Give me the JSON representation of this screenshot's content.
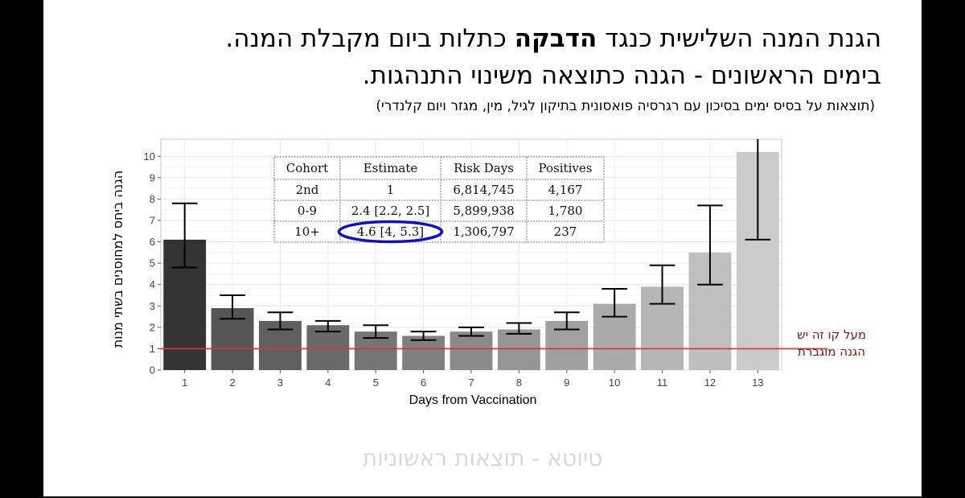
{
  "slide": {
    "title_line1_part1": "הגנת המנה השלישית כנגד ",
    "title_line1_bold": "הדבקה",
    "title_line1_part2": " כתלות ביום מקבלת המנה.",
    "title_line2": "בימים הראשונים - הגנה כתוצאה משינוי התנהגות.",
    "subtitle": "(תוצאות על בסיס ימים בסיכון עם רגרסיה פואסונית בתיקון לגיל, מין, מגזר ויום קלנדרי)",
    "footer": "טיוטא - תוצאות ראשוניות"
  },
  "chart_data": {
    "type": "bar",
    "xlabel": "Days from Vaccination",
    "ylabel": "הגנה ביחס למחוסנים בשתי מנות",
    "categories": [
      "1",
      "2",
      "3",
      "4",
      "5",
      "6",
      "7",
      "8",
      "9",
      "10",
      "11",
      "12",
      "13"
    ],
    "values": [
      6.1,
      2.9,
      2.3,
      2.1,
      1.8,
      1.6,
      1.8,
      1.9,
      2.3,
      3.1,
      3.9,
      5.5,
      10.2
    ],
    "ci_low": [
      4.8,
      2.4,
      1.9,
      1.8,
      1.5,
      1.4,
      1.6,
      1.7,
      1.9,
      2.5,
      3.1,
      4.0,
      6.1
    ],
    "ci_high": [
      7.8,
      3.5,
      2.7,
      2.3,
      2.1,
      1.8,
      2.0,
      2.2,
      2.7,
      3.8,
      4.9,
      7.7,
      10.8
    ],
    "bar_colors": [
      "#333333",
      "#555555",
      "#5f5f5f",
      "#6a6a6a",
      "#757575",
      "#808080",
      "#8a8a8a",
      "#959595",
      "#a0a0a0",
      "#aaaaaa",
      "#b5b5b5",
      "#bfbfbf",
      "#cacaca"
    ],
    "ylim": [
      0,
      10.8
    ],
    "yticks": [
      0,
      1,
      2,
      3,
      4,
      5,
      6,
      7,
      8,
      9,
      10
    ],
    "reference_line": {
      "y": 1,
      "color": "#e03030",
      "label_line1": "מעל קו זה יש",
      "label_line2": "הגנה מוגברת",
      "label_color": "#8b1010"
    },
    "grid": true,
    "table": {
      "headers": [
        "Cohort",
        "Estimate",
        "Risk Days",
        "Positives"
      ],
      "rows": [
        [
          "2nd",
          "1",
          "6,814,745",
          "4,167"
        ],
        [
          "0-9",
          "2.4 [2.2, 2.5]",
          "5,899,938",
          "1,780"
        ],
        [
          "10+",
          "4.6 [4, 5.3]",
          "1,306,797",
          "237"
        ]
      ],
      "highlight_color": "#1010c0"
    }
  }
}
